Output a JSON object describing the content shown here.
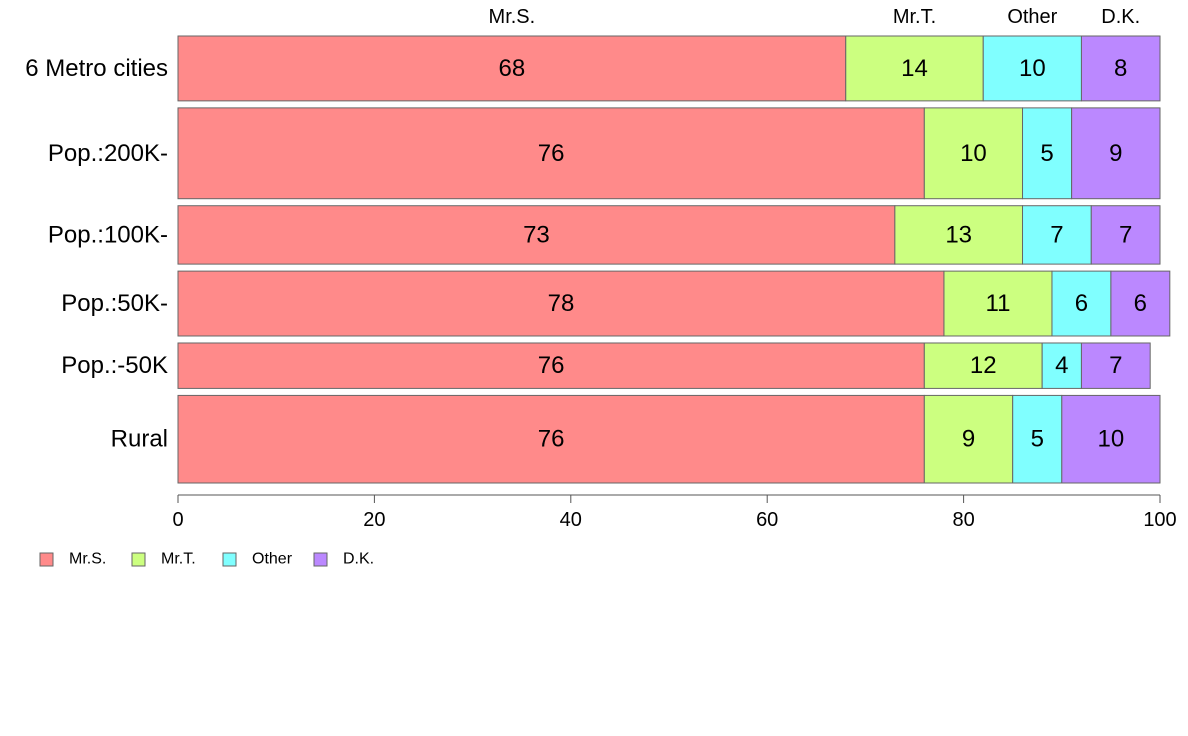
{
  "chart_data": {
    "type": "bar",
    "orientation": "horizontal",
    "stacked": true,
    "categories": [
      "6 Metro cities",
      "Pop.:200K-",
      "Pop.:100K-",
      "Pop.:50K-",
      "Pop.:-50K",
      "Rural"
    ],
    "category_weights": [
      1.0,
      1.4,
      0.9,
      1.0,
      0.7,
      1.35
    ],
    "series": [
      {
        "name": "Mr.S.",
        "color": "#ff8a8a",
        "values": [
          68,
          76,
          73,
          78,
          76,
          76
        ]
      },
      {
        "name": "Mr.T.",
        "color": "#ccff80",
        "values": [
          14,
          10,
          13,
          11,
          12,
          9
        ]
      },
      {
        "name": "Other",
        "color": "#80ffff",
        "values": [
          10,
          5,
          7,
          6,
          4,
          5
        ]
      },
      {
        "name": "D.K.",
        "color": "#bb88ff",
        "values": [
          8,
          9,
          7,
          6,
          7,
          10
        ]
      }
    ],
    "top_labels": [
      "Mr.S.",
      "Mr.T.",
      "Other",
      "D.K."
    ],
    "xlim": [
      0,
      100
    ],
    "xticks": [
      0,
      20,
      40,
      60,
      80,
      100
    ],
    "legend_position": "bottom-left",
    "grid": false
  }
}
